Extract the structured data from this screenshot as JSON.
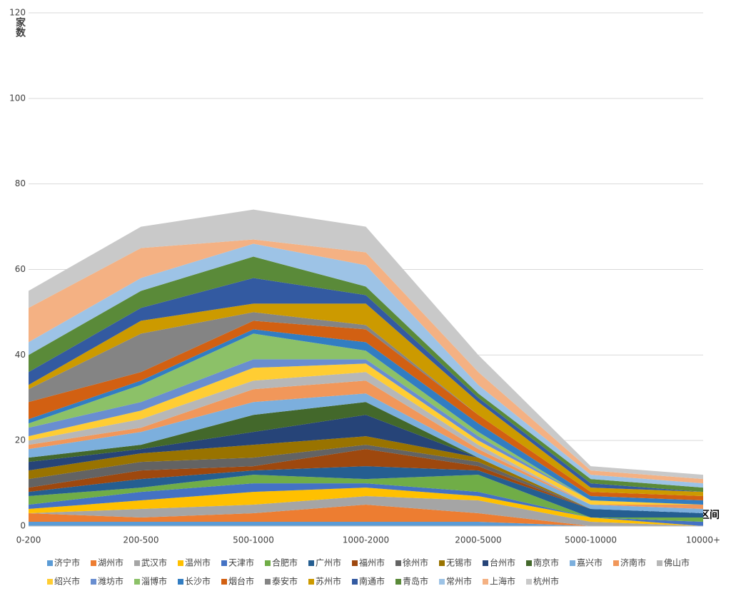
{
  "chart_data": {
    "type": "stacked-area",
    "y_label": "家数",
    "x_label": "参保人数规模区间",
    "categories": [
      "0-200",
      "200-500",
      "500-1000",
      "1000-2000",
      "2000-5000",
      "5000-10000",
      "10000+"
    ],
    "ylim": [
      0,
      120
    ],
    "yticks": [
      0,
      20,
      40,
      60,
      80,
      100,
      120
    ],
    "grid": true,
    "series": [
      {
        "name": "济宁市",
        "color": "#5b9bd5",
        "values": [
          1,
          1,
          1,
          1,
          1,
          0,
          0
        ]
      },
      {
        "name": "湖州市",
        "color": "#ed7d31",
        "values": [
          2,
          1,
          2,
          4,
          2,
          0,
          0
        ]
      },
      {
        "name": "武汉市",
        "color": "#a5a5a5",
        "values": [
          0,
          2,
          2,
          2,
          3,
          1,
          0
        ]
      },
      {
        "name": "温州市",
        "color": "#ffc000",
        "values": [
          1,
          2,
          3,
          2,
          1,
          1,
          0
        ]
      },
      {
        "name": "天津市",
        "color": "#4472c4",
        "values": [
          1,
          2,
          2,
          1,
          1,
          0,
          1
        ]
      },
      {
        "name": "合肥市",
        "color": "#70ad47",
        "values": [
          2,
          1,
          2,
          1,
          4,
          0,
          1
        ]
      },
      {
        "name": "广州市",
        "color": "#255e91",
        "values": [
          1,
          2,
          1,
          3,
          1,
          2,
          1
        ]
      },
      {
        "name": "福州市",
        "color": "#9e480e",
        "values": [
          1,
          2,
          1,
          4,
          1,
          0,
          0
        ]
      },
      {
        "name": "徐州市",
        "color": "#636363",
        "values": [
          2,
          2,
          2,
          1,
          1,
          0,
          0
        ]
      },
      {
        "name": "无锡市",
        "color": "#997300",
        "values": [
          2,
          2,
          3,
          2,
          1,
          0,
          0
        ]
      },
      {
        "name": "台州市",
        "color": "#264478",
        "values": [
          2,
          1,
          3,
          5,
          0,
          0,
          0
        ]
      },
      {
        "name": "南京市",
        "color": "#43682b",
        "values": [
          1,
          1,
          4,
          3,
          0,
          0,
          0
        ]
      },
      {
        "name": "嘉兴市",
        "color": "#7cafdd",
        "values": [
          2,
          3,
          3,
          2,
          1,
          1,
          1
        ]
      },
      {
        "name": "济南市",
        "color": "#f1975a",
        "values": [
          1,
          1,
          3,
          3,
          1,
          0,
          1
        ]
      },
      {
        "name": "佛山市",
        "color": "#b7b7b7",
        "values": [
          1,
          2,
          2,
          2,
          1,
          0,
          0
        ]
      },
      {
        "name": "绍兴市",
        "color": "#ffcd33",
        "values": [
          1,
          2,
          3,
          2,
          1,
          1,
          0
        ]
      },
      {
        "name": "潍坊市",
        "color": "#698ed0",
        "values": [
          2,
          2,
          2,
          1,
          1,
          0,
          0
        ]
      },
      {
        "name": "淄博市",
        "color": "#8cc168",
        "values": [
          1,
          4,
          6,
          2,
          1,
          0,
          0
        ]
      },
      {
        "name": "长沙市",
        "color": "#327dc2",
        "values": [
          1,
          1,
          1,
          2,
          2,
          1,
          1
        ]
      },
      {
        "name": "烟台市",
        "color": "#d26012",
        "values": [
          4,
          2,
          2,
          3,
          2,
          1,
          1
        ]
      },
      {
        "name": "泰安市",
        "color": "#848484",
        "values": [
          3,
          9,
          2,
          1,
          0,
          0,
          0
        ]
      },
      {
        "name": "苏州市",
        "color": "#cc9a00",
        "values": [
          1,
          3,
          2,
          5,
          3,
          1,
          1
        ]
      },
      {
        "name": "南通市",
        "color": "#335aa1",
        "values": [
          3,
          3,
          6,
          2,
          1,
          1,
          0
        ]
      },
      {
        "name": "青岛市",
        "color": "#5a8a39",
        "values": [
          4,
          4,
          5,
          2,
          1,
          1,
          1
        ]
      },
      {
        "name": "常州市",
        "color": "#9dc3e6",
        "values": [
          3,
          3,
          3,
          5,
          2,
          1,
          1
        ]
      },
      {
        "name": "上海市",
        "color": "#f4b183",
        "values": [
          8,
          7,
          1,
          3,
          3,
          1,
          1
        ]
      },
      {
        "name": "杭州市",
        "color": "#c9c9c9",
        "values": [
          4,
          5,
          7,
          6,
          4,
          1,
          1
        ]
      }
    ]
  }
}
